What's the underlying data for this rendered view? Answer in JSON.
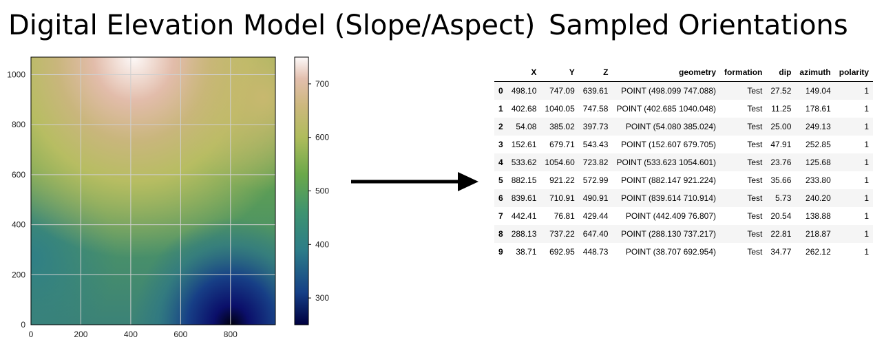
{
  "titles": {
    "left": "Digital Elevation Model (Slope/Aspect)",
    "right": "Sampled Orientations"
  },
  "chart_data": {
    "type": "heatmap",
    "x_ticks": [
      "0",
      "200",
      "400",
      "600",
      "800"
    ],
    "x_tick_values": [
      0,
      200,
      400,
      600,
      800
    ],
    "y_ticks": [
      "0",
      "200",
      "400",
      "600",
      "800",
      "1000"
    ],
    "y_tick_values": [
      0,
      200,
      400,
      600,
      800,
      1000
    ],
    "xlim": [
      0,
      980
    ],
    "ylim": [
      0,
      1070
    ],
    "grid": true,
    "colormap": "gist_earth",
    "colorbar": {
      "ticks": [
        "300",
        "400",
        "500",
        "600",
        "700"
      ],
      "tick_values": [
        300,
        400,
        500,
        600,
        700
      ],
      "range": [
        250,
        750
      ]
    }
  },
  "table": {
    "columns": [
      "",
      "X",
      "Y",
      "Z",
      "geometry",
      "formation",
      "dip",
      "azimuth",
      "polarity"
    ],
    "rows": [
      [
        "0",
        "498.10",
        "747.09",
        "639.61",
        "POINT (498.099 747.088)",
        "Test",
        "27.52",
        "149.04",
        "1"
      ],
      [
        "1",
        "402.68",
        "1040.05",
        "747.58",
        "POINT (402.685 1040.048)",
        "Test",
        "11.25",
        "178.61",
        "1"
      ],
      [
        "2",
        "54.08",
        "385.02",
        "397.73",
        "POINT (54.080 385.024)",
        "Test",
        "25.00",
        "249.13",
        "1"
      ],
      [
        "3",
        "152.61",
        "679.71",
        "543.43",
        "POINT (152.607 679.705)",
        "Test",
        "47.91",
        "252.85",
        "1"
      ],
      [
        "4",
        "533.62",
        "1054.60",
        "723.82",
        "POINT (533.623 1054.601)",
        "Test",
        "23.76",
        "125.68",
        "1"
      ],
      [
        "5",
        "882.15",
        "921.22",
        "572.99",
        "POINT (882.147 921.224)",
        "Test",
        "35.66",
        "233.80",
        "1"
      ],
      [
        "6",
        "839.61",
        "710.91",
        "490.91",
        "POINT (839.614 710.914)",
        "Test",
        "5.73",
        "240.20",
        "1"
      ],
      [
        "7",
        "442.41",
        "76.81",
        "429.44",
        "POINT (442.409 76.807)",
        "Test",
        "20.54",
        "138.88",
        "1"
      ],
      [
        "8",
        "288.13",
        "737.22",
        "647.40",
        "POINT (288.130 737.217)",
        "Test",
        "22.81",
        "218.87",
        "1"
      ],
      [
        "9",
        "38.71",
        "692.95",
        "448.73",
        "POINT (38.707 692.954)",
        "Test",
        "34.77",
        "262.12",
        "1"
      ]
    ]
  }
}
